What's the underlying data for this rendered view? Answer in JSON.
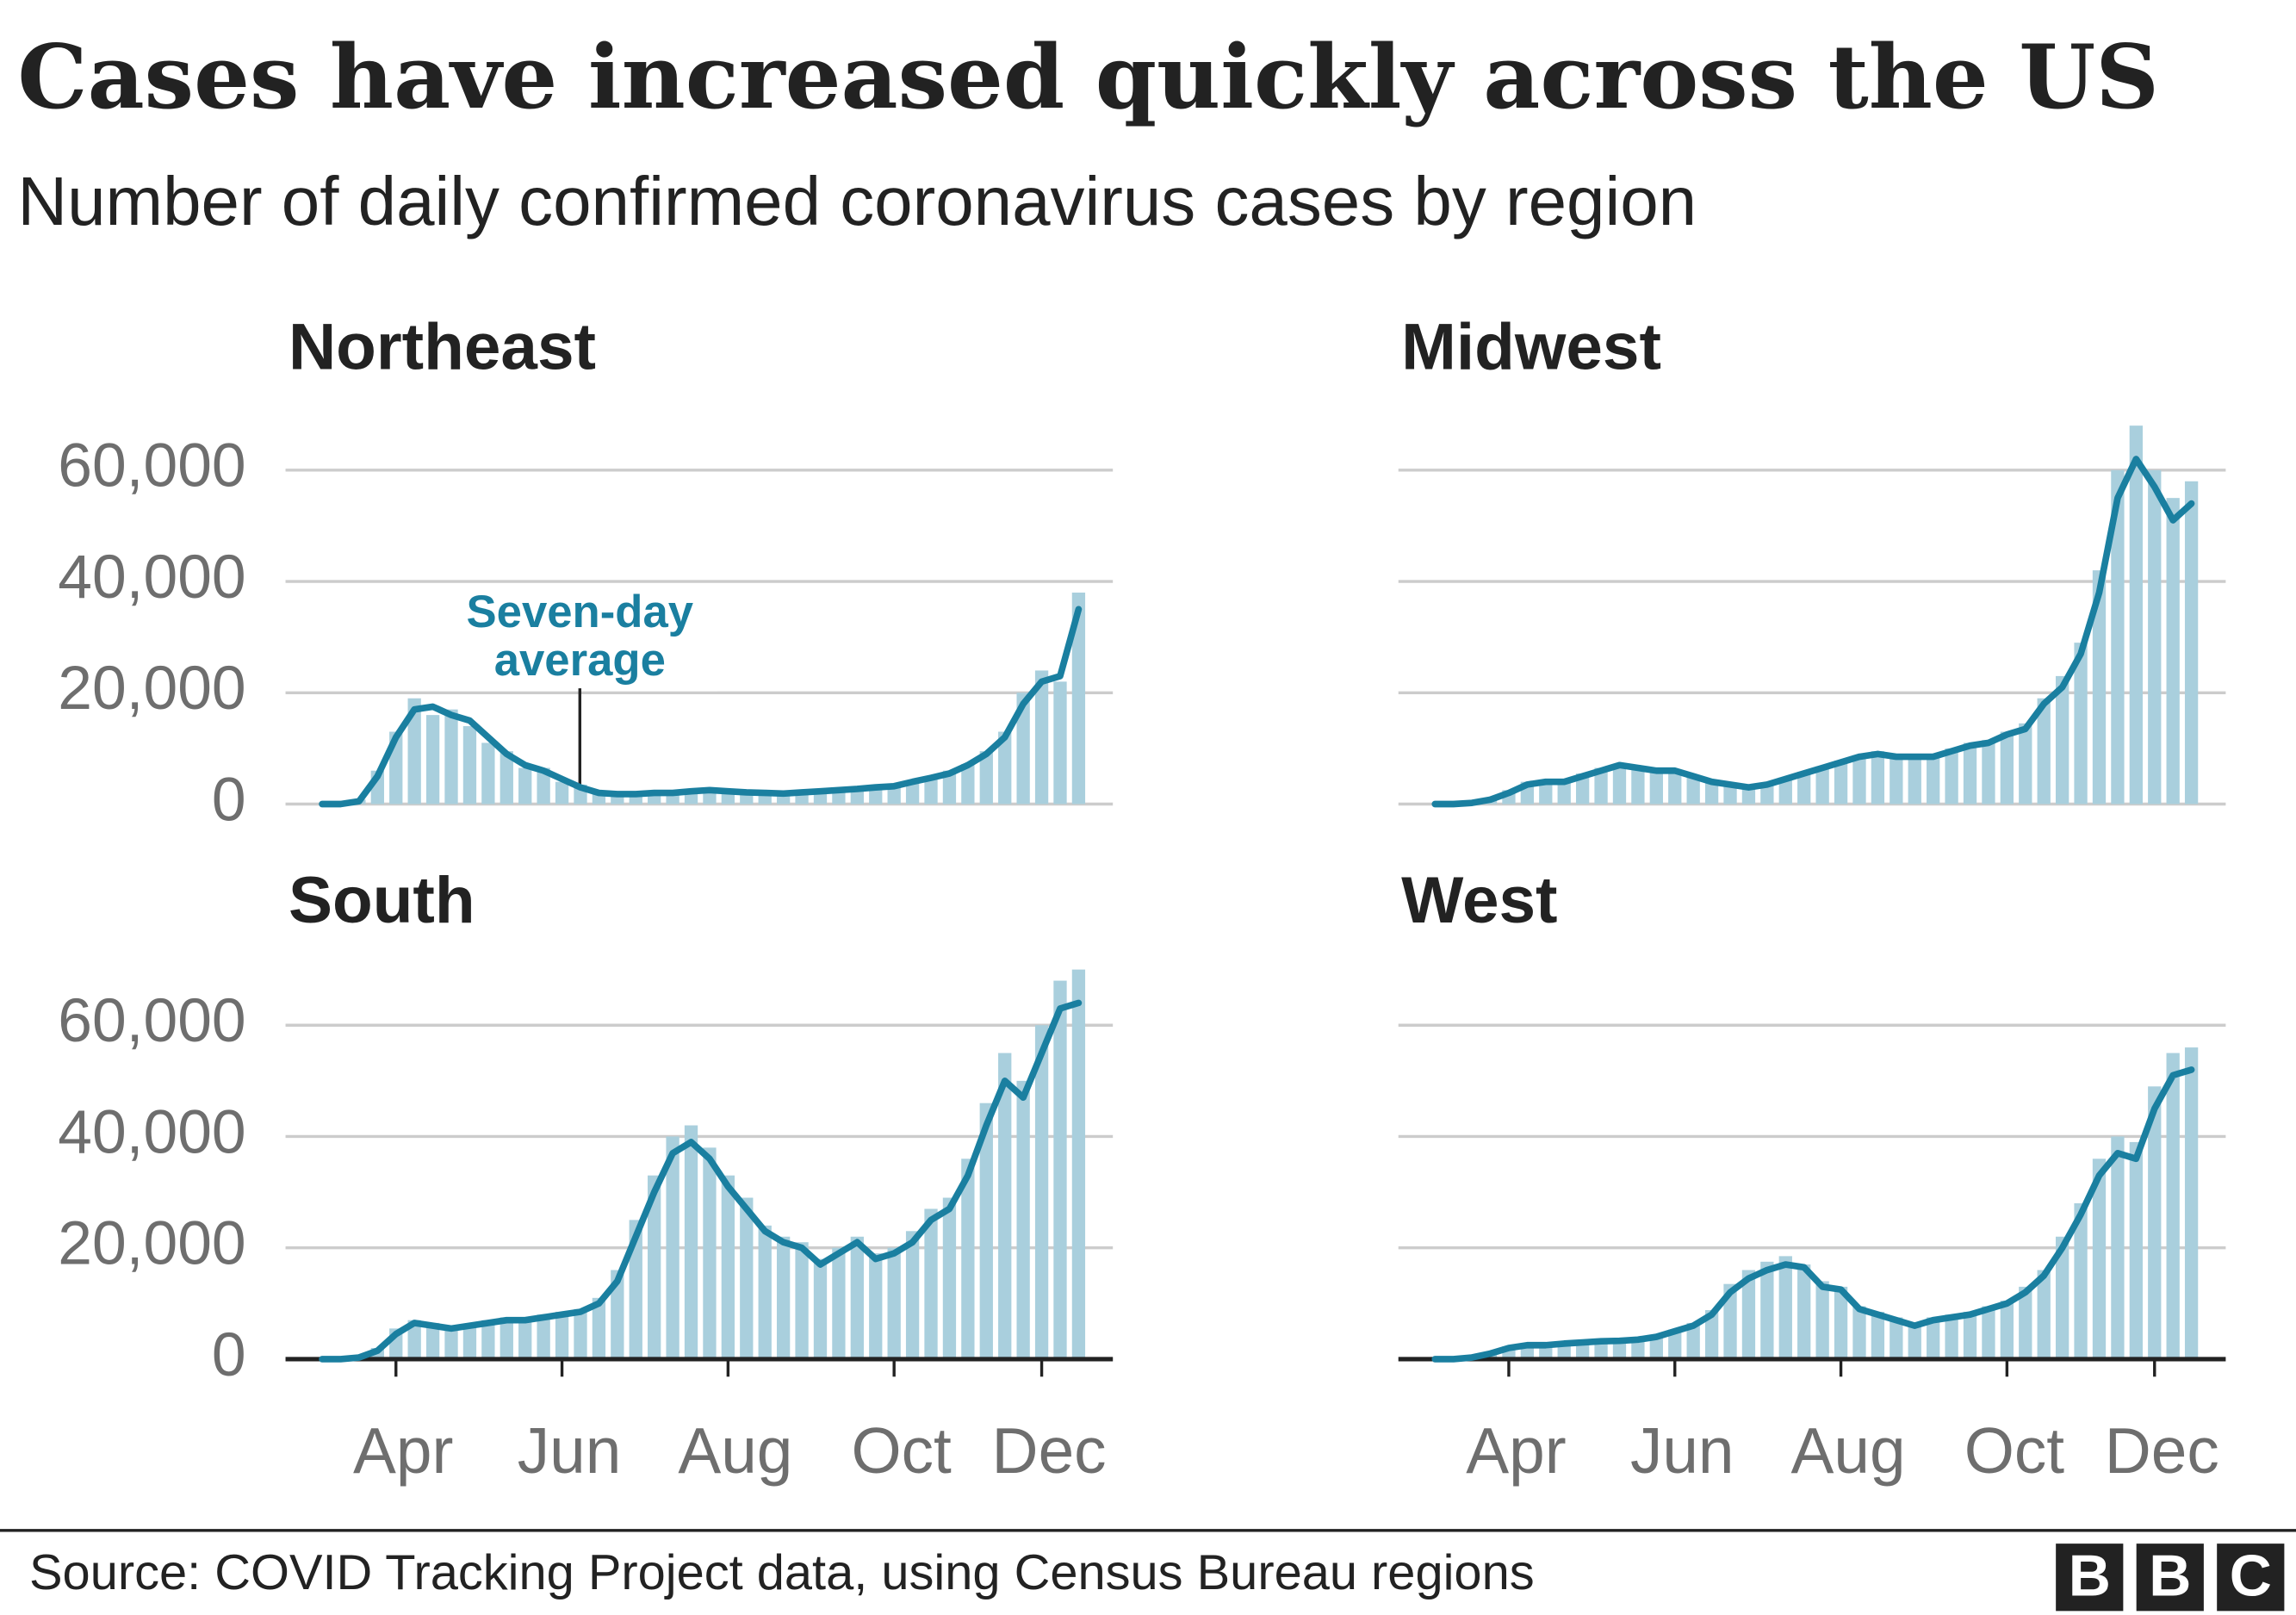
{
  "title": "Cases have increased quickly across the US",
  "subtitle": "Number of daily confirmed coronavirus cases by region",
  "source": "Source: COVID Tracking Project data, using Census Bureau regions",
  "logo": [
    "B",
    "B",
    "C"
  ],
  "chart_data": [
    {
      "type": "bar-line",
      "title": "Northeast",
      "categories": [
        null,
        null,
        null,
        null,
        null,
        null,
        null,
        null,
        null,
        null,
        null,
        null,
        null,
        null,
        null,
        null,
        null,
        null,
        null,
        null,
        null,
        null,
        null,
        null,
        null,
        null,
        null,
        null,
        null,
        null,
        null,
        null,
        null,
        null,
        null,
        null,
        null,
        null,
        null,
        null,
        null,
        null
      ],
      "ylim": [
        0,
        70000
      ],
      "yticks": [
        0,
        {
          "value": 20000,
          "label": "20,000"
        },
        {
          "value": 40000,
          "label": "40,000"
        },
        {
          "value": 60000,
          "label": "60,000"
        }
      ],
      "ytick_labels": true,
      "grid": true,
      "x_axis": false,
      "annotation": [
        "Seven-day",
        "average"
      ],
      "series": [
        {
          "style": "bar",
          "color": "#a9cfdd",
          "values": [
            0,
            0,
            800,
            6000,
            13000,
            19000,
            16000,
            17000,
            14000,
            11000,
            9500,
            6500,
            6500,
            4000,
            3500,
            2200,
            1700,
            2000,
            1900,
            2200,
            2400,
            2600,
            2100,
            2200,
            1900,
            2000,
            2200,
            2200,
            2700,
            2600,
            3200,
            3000,
            4300,
            4500,
            6000,
            7200,
            9500,
            13000,
            20000,
            24000,
            22000,
            38000
          ]
        },
        {
          "style": "line",
          "color": "#1a7fa0",
          "values": [
            0,
            0,
            500,
            5000,
            12000,
            17000,
            17500,
            16000,
            15000,
            12000,
            9000,
            7000,
            6000,
            4500,
            3000,
            2000,
            1800,
            1800,
            2000,
            2000,
            2300,
            2500,
            2300,
            2100,
            2000,
            1900,
            2100,
            2300,
            2500,
            2700,
            3000,
            3200,
            4000,
            4700,
            5500,
            7000,
            9000,
            12000,
            18000,
            22000,
            23000,
            35000
          ]
        }
      ]
    },
    {
      "type": "bar-line",
      "title": "Midwest",
      "categories": [
        null,
        null,
        null,
        null,
        null,
        null,
        null,
        null,
        null,
        null,
        null,
        null,
        null,
        null,
        null,
        null,
        null,
        null,
        null,
        null,
        null,
        null,
        null,
        null,
        null,
        null,
        null,
        null,
        null,
        null,
        null,
        null,
        null,
        null,
        null,
        null,
        null,
        null,
        null,
        null,
        null,
        null
      ],
      "ylim": [
        0,
        70000
      ],
      "yticks": [
        0,
        20000,
        40000,
        60000
      ],
      "ytick_labels": false,
      "grid": true,
      "x_axis": false,
      "series": [
        {
          "style": "bar",
          "color": "#a9cfdd",
          "values": [
            0,
            0,
            300,
            1000,
            2500,
            4000,
            4200,
            3800,
            5500,
            6500,
            7200,
            6300,
            6200,
            5800,
            4800,
            3800,
            3600,
            2900,
            3800,
            4800,
            5800,
            6800,
            7800,
            8800,
            9500,
            8200,
            8800,
            8400,
            10000,
            11000,
            11500,
            13000,
            14500,
            19000,
            23000,
            29000,
            42000,
            60000,
            68000,
            60000,
            55000,
            58000
          ]
        },
        {
          "style": "line",
          "color": "#1a7fa0",
          "values": [
            0,
            0,
            200,
            800,
            2000,
            3500,
            4000,
            4000,
            5000,
            6000,
            7000,
            6500,
            6000,
            6000,
            5000,
            4000,
            3500,
            3000,
            3500,
            4500,
            5500,
            6500,
            7500,
            8500,
            9000,
            8500,
            8500,
            8500,
            9500,
            10500,
            11000,
            12500,
            13500,
            18000,
            21000,
            27000,
            38000,
            55000,
            62000,
            57000,
            51000,
            54000
          ]
        }
      ]
    },
    {
      "type": "bar-line",
      "title": "South",
      "categories": [
        null,
        null,
        null,
        null,
        "Apr",
        null,
        null,
        null,
        null,
        null,
        null,
        null,
        null,
        "Jun",
        null,
        null,
        null,
        null,
        null,
        null,
        null,
        null,
        "Aug",
        null,
        null,
        null,
        null,
        null,
        null,
        null,
        null,
        "Oct",
        null,
        null,
        null,
        null,
        null,
        null,
        null,
        "Dec",
        null,
        null
      ],
      "ylim": [
        0,
        70000
      ],
      "yticks": [
        0,
        {
          "value": 20000,
          "label": "20,000"
        },
        {
          "value": 40000,
          "label": "40,000"
        },
        {
          "value": 60000,
          "label": "60,000"
        }
      ],
      "ytick_labels": true,
      "grid": true,
      "x_axis": true,
      "series": [
        {
          "style": "bar",
          "color": "#a9cfdd",
          "values": [
            0,
            0,
            500,
            2000,
            5500,
            7000,
            6500,
            5800,
            6300,
            7000,
            7500,
            7200,
            8000,
            8500,
            9000,
            11000,
            16000,
            25000,
            33000,
            40000,
            42000,
            38000,
            33000,
            29000,
            24000,
            22000,
            21000,
            18000,
            20000,
            22000,
            19000,
            20000,
            23000,
            27000,
            29000,
            36000,
            46000,
            55000,
            50000,
            60000,
            68000,
            70000
          ]
        },
        {
          "style": "line",
          "color": "#1a7fa0",
          "values": [
            0,
            0,
            300,
            1500,
            4500,
            6500,
            6000,
            5500,
            6000,
            6500,
            7000,
            7000,
            7500,
            8000,
            8500,
            10000,
            14000,
            22000,
            30000,
            37000,
            39000,
            36000,
            31000,
            27000,
            23000,
            21000,
            20000,
            17000,
            19000,
            21000,
            18000,
            19000,
            21000,
            25000,
            27000,
            33000,
            42000,
            50000,
            47000,
            55000,
            63000,
            64000
          ]
        }
      ]
    },
    {
      "type": "bar-line",
      "title": "West",
      "categories": [
        null,
        null,
        null,
        null,
        "Apr",
        null,
        null,
        null,
        null,
        null,
        null,
        null,
        null,
        "Jun",
        null,
        null,
        null,
        null,
        null,
        null,
        null,
        null,
        "Aug",
        null,
        null,
        null,
        null,
        null,
        null,
        null,
        null,
        "Oct",
        null,
        null,
        null,
        null,
        null,
        null,
        null,
        "Dec",
        null,
        null
      ],
      "ylim": [
        0,
        70000
      ],
      "yticks": [
        0,
        20000,
        40000,
        60000
      ],
      "ytick_labels": false,
      "grid": true,
      "x_axis": true,
      "series": [
        {
          "style": "bar",
          "color": "#a9cfdd",
          "values": [
            0,
            0,
            400,
            1200,
            2300,
            2700,
            2600,
            3000,
            3200,
            3400,
            3500,
            3700,
            4300,
            5300,
            6500,
            8800,
            13500,
            16000,
            17500,
            18500,
            17000,
            14000,
            13000,
            9500,
            8500,
            7500,
            6300,
            7500,
            8000,
            8500,
            9500,
            10500,
            13000,
            16000,
            22000,
            28000,
            36000,
            40000,
            39000,
            49000,
            55000,
            56000
          ]
        },
        {
          "style": "line",
          "color": "#1a7fa0",
          "values": [
            0,
            0,
            300,
            1000,
            2000,
            2500,
            2500,
            2800,
            3000,
            3200,
            3300,
            3500,
            4000,
            5000,
            6000,
            8000,
            12000,
            14500,
            16000,
            17000,
            16500,
            13000,
            12500,
            9000,
            8000,
            7000,
            6000,
            7000,
            7500,
            8000,
            9000,
            10000,
            12000,
            15000,
            20000,
            26000,
            33000,
            37000,
            36000,
            45000,
            51000,
            52000
          ]
        }
      ]
    }
  ]
}
